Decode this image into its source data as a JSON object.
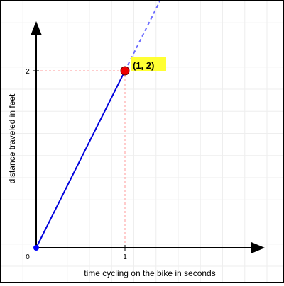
{
  "chart_data": {
    "type": "line",
    "xlabel": "time cycling on the bike in seconds",
    "ylabel": "distance traveled in feet",
    "xlim": [
      0,
      2.5
    ],
    "ylim": [
      0,
      2.5
    ],
    "grid": true,
    "x_ticks": [
      {
        "value": 0,
        "label": "0"
      },
      {
        "value": 1,
        "label": "1"
      }
    ],
    "y_ticks": [
      {
        "value": 2,
        "label": "2"
      }
    ],
    "series": [
      {
        "points": [
          {
            "x": 0,
            "y": 0
          },
          {
            "x": 1,
            "y": 2
          }
        ],
        "extension": [
          {
            "x": 1,
            "y": 2
          },
          {
            "x": 2.4,
            "y": 4.8
          }
        ],
        "color": "#0000dd",
        "extension_color": "#6a6aff"
      }
    ],
    "highlight_point": {
      "x": 1,
      "y": 2,
      "label": "(1, 2)",
      "fill": "#ee0000",
      "label_bg": "#ffff33",
      "guide_color": "#ff9999"
    },
    "origin_point": {
      "x": 0,
      "y": 0,
      "fill": "#0000ff"
    },
    "colors": {
      "grid": "#eeeeee",
      "axis": "#000000"
    }
  }
}
